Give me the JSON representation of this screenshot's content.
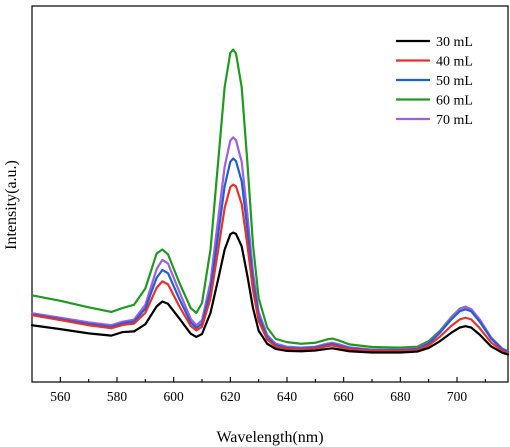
{
  "chart_data": {
    "type": "line",
    "xlabel": "Wavelength(nm)",
    "ylabel": "Intensity(a.u.)",
    "xlim": [
      550,
      718
    ],
    "ylim": [
      0,
      1.0
    ],
    "x_ticks": [
      560,
      580,
      600,
      620,
      640,
      660,
      680,
      700
    ],
    "y_ticks_shown": false,
    "legend_position": "top-right",
    "series": [
      {
        "name": "30 mL",
        "color": "#000000",
        "points": [
          [
            550,
            0.147
          ],
          [
            560,
            0.135
          ],
          [
            570,
            0.122
          ],
          [
            578,
            0.115
          ],
          [
            582,
            0.126
          ],
          [
            586,
            0.128
          ],
          [
            590,
            0.15
          ],
          [
            594,
            0.205
          ],
          [
            596,
            0.22
          ],
          [
            598,
            0.213
          ],
          [
            602,
            0.168
          ],
          [
            606,
            0.121
          ],
          [
            608,
            0.111
          ],
          [
            610,
            0.12
          ],
          [
            613,
            0.185
          ],
          [
            616,
            0.3
          ],
          [
            618,
            0.38
          ],
          [
            620,
            0.427
          ],
          [
            621,
            0.432
          ],
          [
            622,
            0.428
          ],
          [
            624,
            0.39
          ],
          [
            626,
            0.3
          ],
          [
            628,
            0.2
          ],
          [
            630,
            0.13
          ],
          [
            633,
            0.09
          ],
          [
            636,
            0.074
          ],
          [
            640,
            0.068
          ],
          [
            645,
            0.067
          ],
          [
            650,
            0.069
          ],
          [
            654,
            0.074
          ],
          [
            656,
            0.076
          ],
          [
            658,
            0.073
          ],
          [
            662,
            0.067
          ],
          [
            670,
            0.063
          ],
          [
            680,
            0.063
          ],
          [
            686,
            0.066
          ],
          [
            690,
            0.077
          ],
          [
            694,
            0.098
          ],
          [
            698,
            0.124
          ],
          [
            701,
            0.14
          ],
          [
            703,
            0.144
          ],
          [
            705,
            0.14
          ],
          [
            708,
            0.118
          ],
          [
            712,
            0.082
          ],
          [
            716,
            0.062
          ],
          [
            718,
            0.057
          ]
        ]
      },
      {
        "name": "40 mL",
        "color": "#e8312a",
        "points": [
          [
            550,
            0.178
          ],
          [
            560,
            0.163
          ],
          [
            570,
            0.147
          ],
          [
            578,
            0.138
          ],
          [
            582,
            0.148
          ],
          [
            586,
            0.152
          ],
          [
            590,
            0.185
          ],
          [
            594,
            0.262
          ],
          [
            596,
            0.282
          ],
          [
            598,
            0.273
          ],
          [
            602,
            0.205
          ],
          [
            606,
            0.145
          ],
          [
            608,
            0.131
          ],
          [
            610,
            0.142
          ],
          [
            613,
            0.23
          ],
          [
            616,
            0.395
          ],
          [
            618,
            0.508
          ],
          [
            620,
            0.572
          ],
          [
            621,
            0.58
          ],
          [
            622,
            0.574
          ],
          [
            624,
            0.52
          ],
          [
            626,
            0.395
          ],
          [
            628,
            0.255
          ],
          [
            630,
            0.16
          ],
          [
            633,
            0.103
          ],
          [
            636,
            0.081
          ],
          [
            640,
            0.074
          ],
          [
            645,
            0.072
          ],
          [
            650,
            0.075
          ],
          [
            654,
            0.082
          ],
          [
            656,
            0.085
          ],
          [
            658,
            0.081
          ],
          [
            662,
            0.073
          ],
          [
            670,
            0.068
          ],
          [
            680,
            0.068
          ],
          [
            686,
            0.071
          ],
          [
            690,
            0.085
          ],
          [
            694,
            0.112
          ],
          [
            698,
            0.145
          ],
          [
            701,
            0.165
          ],
          [
            703,
            0.17
          ],
          [
            705,
            0.165
          ],
          [
            708,
            0.138
          ],
          [
            712,
            0.094
          ],
          [
            716,
            0.068
          ],
          [
            718,
            0.062
          ]
        ]
      },
      {
        "name": "50 mL",
        "color": "#1f5fd6",
        "points": [
          [
            550,
            0.18
          ],
          [
            560,
            0.166
          ],
          [
            570,
            0.151
          ],
          [
            578,
            0.142
          ],
          [
            582,
            0.153
          ],
          [
            586,
            0.158
          ],
          [
            590,
            0.198
          ],
          [
            594,
            0.293
          ],
          [
            596,
            0.317
          ],
          [
            598,
            0.307
          ],
          [
            602,
            0.228
          ],
          [
            606,
            0.156
          ],
          [
            608,
            0.139
          ],
          [
            610,
            0.152
          ],
          [
            613,
            0.255
          ],
          [
            616,
            0.445
          ],
          [
            618,
            0.575
          ],
          [
            620,
            0.65
          ],
          [
            621,
            0.66
          ],
          [
            622,
            0.652
          ],
          [
            624,
            0.59
          ],
          [
            626,
            0.445
          ],
          [
            628,
            0.285
          ],
          [
            630,
            0.175
          ],
          [
            633,
            0.11
          ],
          [
            636,
            0.085
          ],
          [
            640,
            0.077
          ],
          [
            645,
            0.075
          ],
          [
            650,
            0.078
          ],
          [
            654,
            0.086
          ],
          [
            656,
            0.089
          ],
          [
            658,
            0.085
          ],
          [
            662,
            0.076
          ],
          [
            670,
            0.07
          ],
          [
            680,
            0.07
          ],
          [
            686,
            0.074
          ],
          [
            690,
            0.091
          ],
          [
            694,
            0.124
          ],
          [
            698,
            0.165
          ],
          [
            701,
            0.19
          ],
          [
            703,
            0.196
          ],
          [
            705,
            0.19
          ],
          [
            708,
            0.158
          ],
          [
            712,
            0.106
          ],
          [
            716,
            0.073
          ],
          [
            718,
            0.066
          ]
        ]
      },
      {
        "name": "60 mL",
        "color": "#1f9a1f",
        "points": [
          [
            550,
            0.239
          ],
          [
            560,
            0.222
          ],
          [
            570,
            0.202
          ],
          [
            578,
            0.188
          ],
          [
            582,
            0.2
          ],
          [
            586,
            0.21
          ],
          [
            590,
            0.26
          ],
          [
            594,
            0.368
          ],
          [
            596,
            0.38
          ],
          [
            598,
            0.365
          ],
          [
            602,
            0.278
          ],
          [
            606,
            0.2
          ],
          [
            608,
            0.185
          ],
          [
            610,
            0.215
          ],
          [
            613,
            0.38
          ],
          [
            616,
            0.68
          ],
          [
            618,
            0.88
          ],
          [
            620,
            0.985
          ],
          [
            621,
            0.995
          ],
          [
            622,
            0.983
          ],
          [
            624,
            0.88
          ],
          [
            626,
            0.65
          ],
          [
            628,
            0.395
          ],
          [
            630,
            0.23
          ],
          [
            633,
            0.14
          ],
          [
            636,
            0.105
          ],
          [
            640,
            0.095
          ],
          [
            645,
            0.09
          ],
          [
            650,
            0.093
          ],
          [
            654,
            0.103
          ],
          [
            656,
            0.106
          ],
          [
            658,
            0.101
          ],
          [
            662,
            0.088
          ],
          [
            670,
            0.08
          ],
          [
            680,
            0.078
          ],
          [
            686,
            0.081
          ],
          [
            690,
            0.098
          ],
          [
            694,
            0.13
          ],
          [
            698,
            0.172
          ],
          [
            701,
            0.198
          ],
          [
            703,
            0.204
          ],
          [
            705,
            0.196
          ],
          [
            708,
            0.163
          ],
          [
            712,
            0.108
          ],
          [
            716,
            0.073
          ],
          [
            718,
            0.066
          ]
        ]
      },
      {
        "name": "70 mL",
        "color": "#a15fe0",
        "points": [
          [
            550,
            0.184
          ],
          [
            560,
            0.17
          ],
          [
            570,
            0.156
          ],
          [
            578,
            0.147
          ],
          [
            582,
            0.158
          ],
          [
            586,
            0.164
          ],
          [
            590,
            0.21
          ],
          [
            594,
            0.32
          ],
          [
            596,
            0.348
          ],
          [
            598,
            0.337
          ],
          [
            602,
            0.25
          ],
          [
            606,
            0.167
          ],
          [
            608,
            0.147
          ],
          [
            610,
            0.162
          ],
          [
            613,
            0.28
          ],
          [
            616,
            0.495
          ],
          [
            618,
            0.635
          ],
          [
            620,
            0.715
          ],
          [
            621,
            0.725
          ],
          [
            622,
            0.716
          ],
          [
            624,
            0.65
          ],
          [
            626,
            0.49
          ],
          [
            628,
            0.31
          ],
          [
            630,
            0.188
          ],
          [
            633,
            0.117
          ],
          [
            636,
            0.09
          ],
          [
            640,
            0.081
          ],
          [
            645,
            0.078
          ],
          [
            650,
            0.081
          ],
          [
            654,
            0.09
          ],
          [
            656,
            0.093
          ],
          [
            658,
            0.089
          ],
          [
            662,
            0.079
          ],
          [
            670,
            0.072
          ],
          [
            680,
            0.072
          ],
          [
            686,
            0.076
          ],
          [
            690,
            0.093
          ],
          [
            694,
            0.127
          ],
          [
            698,
            0.17
          ],
          [
            701,
            0.197
          ],
          [
            703,
            0.203
          ],
          [
            705,
            0.197
          ],
          [
            708,
            0.165
          ],
          [
            712,
            0.11
          ],
          [
            716,
            0.075
          ],
          [
            718,
            0.067
          ]
        ]
      }
    ]
  }
}
